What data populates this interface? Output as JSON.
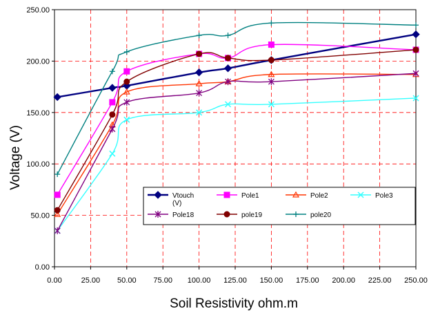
{
  "chart_data": {
    "type": "line",
    "title": "",
    "xlabel": "Soil Resistivity ohm.m",
    "ylabel": "Voltage (V)",
    "xlim": [
      0,
      250
    ],
    "ylim": [
      0,
      250
    ],
    "x_ticks": [
      "0.00",
      "25.00",
      "50.00",
      "75.00",
      "100.00",
      "125.00",
      "150.00",
      "175.00",
      "200.00",
      "225.00",
      "250.00"
    ],
    "y_ticks": [
      "0.00",
      "50.00",
      "100.00",
      "150.00",
      "200.00",
      "250.00"
    ],
    "grid": true,
    "legend_position": "bottom-center",
    "series": [
      {
        "name": "Vtouch",
        "legend_label": [
          "Vtouch",
          "(V)"
        ],
        "color": "#000080",
        "marker": "diamond",
        "x": [
          2,
          40,
          50,
          100,
          120,
          150,
          250
        ],
        "y": [
          165,
          174,
          176,
          189,
          193,
          201,
          226
        ]
      },
      {
        "name": "Pole1",
        "color": "#ff00ff",
        "marker": "square",
        "x": [
          2,
          40,
          50,
          100,
          120,
          150,
          250
        ],
        "y": [
          70,
          160,
          190,
          207,
          203,
          216,
          211
        ]
      },
      {
        "name": "Pole2",
        "color": "#ff3300",
        "marker": "triangle",
        "x": [
          2,
          40,
          50,
          100,
          120,
          150,
          250
        ],
        "y": [
          51,
          138,
          170,
          178,
          180,
          187,
          187
        ]
      },
      {
        "name": "Pole3",
        "color": "#33ffff",
        "marker": "x",
        "x": [
          2,
          40,
          50,
          100,
          120,
          150,
          250
        ],
        "y": [
          35,
          110,
          143,
          150,
          158,
          158,
          164
        ]
      },
      {
        "name": "Pole18",
        "color": "#800080",
        "marker": "star",
        "x": [
          2,
          40,
          50,
          100,
          120,
          150,
          250
        ],
        "y": [
          35,
          134,
          160,
          169,
          180,
          180,
          188
        ]
      },
      {
        "name": "pole19",
        "color": "#800000",
        "marker": "circle",
        "x": [
          2,
          40,
          50,
          100,
          120,
          150,
          250
        ],
        "y": [
          55,
          148,
          180,
          207,
          203,
          201,
          211
        ]
      },
      {
        "name": "pole20",
        "color": "#008080",
        "marker": "plus",
        "x": [
          2,
          40,
          50,
          100,
          120,
          150,
          250
        ],
        "y": [
          90,
          190,
          209,
          225,
          225,
          237,
          235
        ]
      }
    ]
  }
}
